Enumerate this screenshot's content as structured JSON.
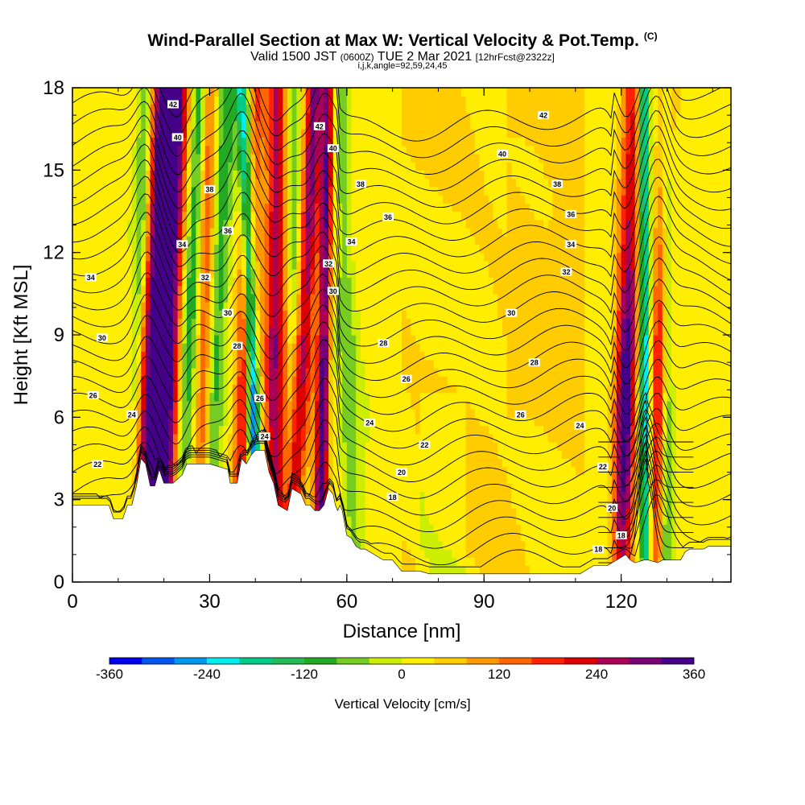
{
  "title": {
    "main": "Wind-Parallel Section at Max W: Vertical Velocity & Pot.Temp.",
    "copyright": "(C)",
    "valid_prefix": "Valid 1500 JST",
    "valid_utc": "(0600Z)",
    "valid_date": "TUE 2 Mar 2021",
    "forecast": "[12hrFcst@2322z]",
    "ijk": "i,j,k,angle=92,59,24,45"
  },
  "chart_data": {
    "type": "heatmap",
    "xlabel": "Distance [nm]",
    "ylabel": "Height [Kft MSL]",
    "xlim": [
      0,
      144
    ],
    "ylim": [
      0,
      18
    ],
    "x_ticks": [
      "0",
      "30",
      "60",
      "90",
      "120"
    ],
    "y_ticks": [
      "0",
      "3",
      "6",
      "9",
      "12",
      "15",
      "18"
    ],
    "colorbar": {
      "label": "Vertical Velocity [cm/s]",
      "range": [
        -360,
        360
      ],
      "tick_labels": [
        "-360",
        "-240",
        "-120",
        "0",
        "120",
        "240",
        "360"
      ],
      "colors": [
        "#0000ee",
        "#0055ee",
        "#0099ee",
        "#00eeee",
        "#00cc88",
        "#22bb55",
        "#22aa22",
        "#77cc22",
        "#ccee00",
        "#ffee00",
        "#ffcc00",
        "#ff9900",
        "#ff6600",
        "#ff2200",
        "#dd0000",
        "#aa0055",
        "#770077",
        "#440088"
      ]
    },
    "theta_contours": {
      "levels": [
        18,
        19,
        20,
        21,
        22,
        23,
        24,
        25,
        26,
        27,
        28,
        29,
        30,
        31,
        32,
        33,
        34,
        35,
        36,
        37,
        38,
        39,
        40,
        41,
        42,
        43,
        44
      ],
      "labels": [
        {
          "text": "42",
          "x": 22,
          "y": 17.4
        },
        {
          "text": "40",
          "x": 23,
          "y": 16.2
        },
        {
          "text": "38",
          "x": 30,
          "y": 14.3
        },
        {
          "text": "36",
          "x": 34,
          "y": 12.8
        },
        {
          "text": "34",
          "x": 24,
          "y": 12.3
        },
        {
          "text": "32",
          "x": 29,
          "y": 11.1
        },
        {
          "text": "30",
          "x": 34,
          "y": 9.8
        },
        {
          "text": "28",
          "x": 36,
          "y": 8.6
        },
        {
          "text": "26",
          "x": 41,
          "y": 6.7
        },
        {
          "text": "24",
          "x": 42,
          "y": 5.3
        },
        {
          "text": "34",
          "x": 4,
          "y": 11.1
        },
        {
          "text": "30",
          "x": 6.5,
          "y": 8.9
        },
        {
          "text": "26",
          "x": 4.5,
          "y": 6.8
        },
        {
          "text": "24",
          "x": 13,
          "y": 6.1
        },
        {
          "text": "22",
          "x": 5.5,
          "y": 4.3
        },
        {
          "text": "42",
          "x": 54,
          "y": 16.6
        },
        {
          "text": "40",
          "x": 57,
          "y": 15.8
        },
        {
          "text": "38",
          "x": 63,
          "y": 14.5
        },
        {
          "text": "36",
          "x": 69,
          "y": 13.3
        },
        {
          "text": "34",
          "x": 61,
          "y": 12.4
        },
        {
          "text": "32",
          "x": 56,
          "y": 11.6
        },
        {
          "text": "30",
          "x": 57,
          "y": 10.6
        },
        {
          "text": "28",
          "x": 68,
          "y": 8.7
        },
        {
          "text": "26",
          "x": 73,
          "y": 7.4
        },
        {
          "text": "24",
          "x": 65,
          "y": 5.8
        },
        {
          "text": "22",
          "x": 77,
          "y": 5.0
        },
        {
          "text": "20",
          "x": 72,
          "y": 4.0
        },
        {
          "text": "18",
          "x": 70,
          "y": 3.1
        },
        {
          "text": "42",
          "x": 103,
          "y": 17.0
        },
        {
          "text": "40",
          "x": 94,
          "y": 15.6
        },
        {
          "text": "38",
          "x": 106,
          "y": 14.5
        },
        {
          "text": "36",
          "x": 109,
          "y": 13.4
        },
        {
          "text": "34",
          "x": 109,
          "y": 12.3
        },
        {
          "text": "32",
          "x": 108,
          "y": 11.3
        },
        {
          "text": "30",
          "x": 96,
          "y": 9.8
        },
        {
          "text": "28",
          "x": 101,
          "y": 8.0
        },
        {
          "text": "26",
          "x": 98,
          "y": 6.1
        },
        {
          "text": "24",
          "x": 111,
          "y": 5.7
        },
        {
          "text": "22",
          "x": 116,
          "y": 4.2
        },
        {
          "text": "20",
          "x": 118,
          "y": 2.7
        },
        {
          "text": "18",
          "x": 120,
          "y": 1.7
        },
        {
          "text": "18",
          "x": 115,
          "y": 1.2
        }
      ]
    },
    "terrain_kft": [
      [
        0,
        2.8
      ],
      [
        8,
        2.8
      ],
      [
        9,
        2.3
      ],
      [
        11,
        2.3
      ],
      [
        12,
        2.8
      ],
      [
        13,
        2.8
      ],
      [
        14,
        3.5
      ],
      [
        15,
        4.5
      ],
      [
        16,
        4.3
      ],
      [
        17,
        3.5
      ],
      [
        18,
        3.5
      ],
      [
        19,
        4.1
      ],
      [
        20,
        3.6
      ],
      [
        21,
        3.6
      ],
      [
        22,
        3.6
      ],
      [
        24,
        3.9
      ],
      [
        25,
        4.3
      ],
      [
        26,
        4.3
      ],
      [
        30,
        4.3
      ],
      [
        34,
        4.1
      ],
      [
        34.5,
        3.6
      ],
      [
        36,
        3.6
      ],
      [
        37,
        4.5
      ],
      [
        38,
        4.3
      ],
      [
        39,
        4.6
      ],
      [
        40,
        4.8
      ],
      [
        42,
        4.8
      ],
      [
        43,
        4.0
      ],
      [
        44,
        3.6
      ],
      [
        45,
        2.8
      ],
      [
        47,
        2.6
      ],
      [
        48,
        3.4
      ],
      [
        50,
        3.2
      ],
      [
        51,
        2.8
      ],
      [
        52,
        2.8
      ],
      [
        53,
        2.6
      ],
      [
        54,
        2.6
      ],
      [
        55,
        2.8
      ],
      [
        56,
        3.4
      ],
      [
        57,
        3.2
      ],
      [
        57.5,
        2.8
      ],
      [
        58,
        2.6
      ],
      [
        58.5,
        2.8
      ],
      [
        59,
        2.6
      ],
      [
        60,
        1.7
      ],
      [
        61,
        1.6
      ],
      [
        62,
        1.3
      ],
      [
        63,
        1.2
      ],
      [
        64,
        1.2
      ],
      [
        66,
        1.0
      ],
      [
        68,
        0.8
      ],
      [
        70,
        0.8
      ],
      [
        72,
        0.4
      ],
      [
        76,
        0.4
      ],
      [
        78,
        0.3
      ],
      [
        90,
        0.3
      ],
      [
        91,
        0.3
      ],
      [
        100,
        0.3
      ],
      [
        106,
        0.3
      ],
      [
        111,
        0.3
      ],
      [
        113,
        0.5
      ],
      [
        114,
        0.6
      ],
      [
        117,
        0.6
      ],
      [
        119,
        0.8
      ],
      [
        121,
        1.0
      ],
      [
        122,
        0.8
      ],
      [
        123,
        0.7
      ],
      [
        125,
        0.8
      ],
      [
        126,
        0.8
      ],
      [
        128,
        0.7
      ],
      [
        129,
        0.8
      ],
      [
        133,
        0.8
      ],
      [
        134,
        1.1
      ],
      [
        135,
        1.2
      ],
      [
        138,
        1.2
      ],
      [
        139,
        1.3
      ],
      [
        144,
        1.3
      ]
    ],
    "updraft_bands": [
      {
        "x_base": 14,
        "x_top": 20,
        "w": 2.5,
        "wmax": 260
      },
      {
        "x_base": 19,
        "x_top": 22.5,
        "w": 2.8,
        "wmax": 360
      },
      {
        "x_base": 28,
        "x_top": 30,
        "w": 1.8,
        "wmax": 150
      },
      {
        "x_base": 36,
        "x_top": 40,
        "w": 2.0,
        "wmax": 200
      },
      {
        "x_base": 44,
        "x_top": 45,
        "w": 2.4,
        "wmax": 250
      },
      {
        "x_base": 48,
        "x_top": 53,
        "w": 2.0,
        "wmax": 280
      },
      {
        "x_base": 54,
        "x_top": 56,
        "w": 1.4,
        "wmax": 290
      },
      {
        "x_base": 120,
        "x_top": 122.5,
        "w": 2.2,
        "wmax": 360
      },
      {
        "x_base": 127,
        "x_top": 130,
        "w": 2.0,
        "wmax": 210
      }
    ],
    "downdraft_bands": [
      {
        "x_base": 13,
        "x_top": 16,
        "w": 1.6,
        "wmax": -120
      },
      {
        "x_base": 23,
        "x_top": 28,
        "w": 1.8,
        "wmax": -140
      },
      {
        "x_base": 29,
        "x_top": 34,
        "w": 2.2,
        "wmax": -120
      },
      {
        "x_base": 41,
        "x_top": 37,
        "w": 1.2,
        "wmax": -240
      },
      {
        "x_base": 39,
        "x_top": 39,
        "w": 1.2,
        "wmax": -130
      },
      {
        "x_base": 50,
        "x_top": 48,
        "w": 2.2,
        "wmax": -120
      },
      {
        "x_base": 62,
        "x_top": 58,
        "w": 2.2,
        "wmax": -80
      },
      {
        "x_base": 125.5,
        "x_top": 125,
        "w": 1.2,
        "wmax": -260
      },
      {
        "x_base": 130,
        "x_top": 130,
        "w": 1.3,
        "wmax": -120
      }
    ]
  }
}
